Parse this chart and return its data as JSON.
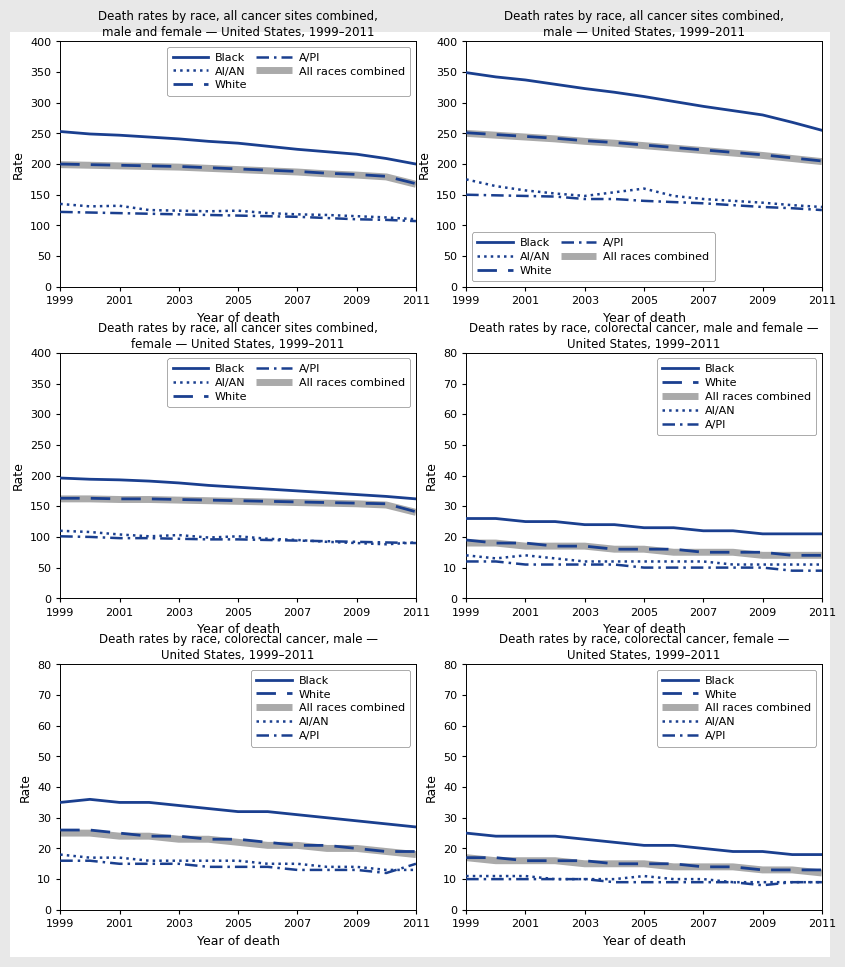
{
  "years": [
    1999,
    2000,
    2001,
    2002,
    2003,
    2004,
    2005,
    2006,
    2007,
    2008,
    2009,
    2010,
    2011
  ],
  "panels": [
    {
      "title": "Death rates by race, all cancer sites combined,\nmale and female — United States, 1999–2011",
      "ylim": [
        0,
        400
      ],
      "yticks": [
        0,
        50,
        100,
        150,
        200,
        250,
        300,
        350,
        400
      ],
      "legend_loc": "upper right",
      "legend_ncol": 2,
      "legend_order": [
        "Black",
        "AI/AN",
        "White",
        "A/PI",
        "All races"
      ],
      "series": {
        "Black": [
          253,
          249,
          247,
          244,
          241,
          237,
          234,
          229,
          224,
          220,
          216,
          209,
          200
        ],
        "White": [
          200,
          199,
          198,
          197,
          196,
          194,
          192,
          190,
          188,
          185,
          183,
          180,
          168
        ],
        "All races": [
          199,
          198,
          197,
          196,
          195,
          193,
          191,
          189,
          187,
          184,
          182,
          179,
          167
        ],
        "AI/AN": [
          135,
          131,
          132,
          125,
          124,
          123,
          124,
          120,
          118,
          117,
          115,
          113,
          110
        ],
        "A/PI": [
          122,
          121,
          120,
          119,
          118,
          117,
          116,
          115,
          114,
          112,
          110,
          109,
          107
        ]
      }
    },
    {
      "title": "Death rates by race, all cancer sites combined,\nmale — United States, 1999–2011",
      "ylim": [
        0,
        400
      ],
      "yticks": [
        0,
        50,
        100,
        150,
        200,
        250,
        300,
        350,
        400
      ],
      "legend_loc": "lower left",
      "legend_ncol": 2,
      "legend_order": [
        "Black",
        "AI/AN",
        "White",
        "A/PI",
        "All races"
      ],
      "series": {
        "Black": [
          349,
          342,
          337,
          330,
          323,
          317,
          310,
          302,
          294,
          287,
          280,
          268,
          255
        ],
        "White": [
          251,
          248,
          245,
          242,
          238,
          235,
          231,
          227,
          223,
          219,
          215,
          210,
          205
        ],
        "All races": [
          250,
          247,
          244,
          241,
          237,
          234,
          230,
          226,
          222,
          218,
          214,
          209,
          204
        ],
        "AI/AN": [
          175,
          164,
          157,
          152,
          148,
          154,
          160,
          148,
          143,
          140,
          137,
          133,
          130
        ],
        "A/PI": [
          150,
          149,
          148,
          147,
          143,
          143,
          140,
          138,
          136,
          133,
          130,
          128,
          125
        ]
      }
    },
    {
      "title": "Death rates by race, all cancer sites combined,\nfemale — United States, 1999–2011",
      "ylim": [
        0,
        400
      ],
      "yticks": [
        0,
        50,
        100,
        150,
        200,
        250,
        300,
        350,
        400
      ],
      "legend_loc": "upper right",
      "legend_ncol": 2,
      "legend_order": [
        "Black",
        "AI/AN",
        "White",
        "A/PI",
        "All races"
      ],
      "series": {
        "Black": [
          196,
          194,
          193,
          191,
          188,
          184,
          181,
          178,
          175,
          172,
          169,
          166,
          162
        ],
        "White": [
          163,
          163,
          162,
          162,
          161,
          160,
          159,
          158,
          157,
          156,
          155,
          154,
          141
        ],
        "All races": [
          162,
          162,
          161,
          161,
          160,
          159,
          158,
          157,
          156,
          155,
          154,
          152,
          140
        ],
        "AI/AN": [
          110,
          108,
          104,
          101,
          103,
          99,
          101,
          97,
          95,
          92,
          90,
          88,
          91
        ],
        "A/PI": [
          101,
          100,
          98,
          98,
          97,
          96,
          96,
          95,
          94,
          93,
          92,
          91,
          90
        ]
      }
    },
    {
      "title": "Death rates by race, colorectal cancer, male and female —\nUnited States, 1999–2011",
      "ylim": [
        0,
        80
      ],
      "yticks": [
        0,
        10,
        20,
        30,
        40,
        50,
        60,
        70,
        80
      ],
      "legend_loc": "upper right",
      "legend_ncol": 1,
      "legend_order": [
        "Black",
        "White",
        "All races",
        "AI/AN",
        "A/PI"
      ],
      "series": {
        "Black": [
          26,
          26,
          25,
          25,
          24,
          24,
          23,
          23,
          22,
          22,
          21,
          21,
          21
        ],
        "White": [
          19,
          18,
          18,
          17,
          17,
          16,
          16,
          16,
          15,
          15,
          15,
          14,
          14
        ],
        "All races": [
          18,
          18,
          17,
          17,
          17,
          16,
          16,
          15,
          15,
          15,
          14,
          14,
          14
        ],
        "AI/AN": [
          14,
          13,
          14,
          13,
          12,
          12,
          12,
          12,
          12,
          11,
          11,
          11,
          11
        ],
        "A/PI": [
          12,
          12,
          11,
          11,
          11,
          11,
          10,
          10,
          10,
          10,
          10,
          9,
          9
        ]
      }
    },
    {
      "title": "Death rates by race, colorectal cancer, male —\nUnited States, 1999–2011",
      "ylim": [
        0,
        80
      ],
      "yticks": [
        0,
        10,
        20,
        30,
        40,
        50,
        60,
        70,
        80
      ],
      "legend_loc": "upper right",
      "legend_ncol": 1,
      "legend_order": [
        "Black",
        "White",
        "All races",
        "AI/AN",
        "A/PI"
      ],
      "series": {
        "Black": [
          35,
          36,
          35,
          35,
          34,
          33,
          32,
          32,
          31,
          30,
          29,
          28,
          27
        ],
        "White": [
          26,
          26,
          25,
          24,
          24,
          23,
          23,
          22,
          21,
          21,
          20,
          19,
          19
        ],
        "All races": [
          25,
          25,
          24,
          24,
          23,
          23,
          22,
          21,
          21,
          20,
          20,
          19,
          18
        ],
        "AI/AN": [
          18,
          17,
          17,
          16,
          16,
          16,
          16,
          15,
          15,
          14,
          14,
          13,
          13
        ],
        "A/PI": [
          16,
          16,
          15,
          15,
          15,
          14,
          14,
          14,
          13,
          13,
          13,
          12,
          15
        ]
      }
    },
    {
      "title": "Death rates by race, colorectal cancer, female —\nUnited States, 1999–2011",
      "ylim": [
        0,
        80
      ],
      "yticks": [
        0,
        10,
        20,
        30,
        40,
        50,
        60,
        70,
        80
      ],
      "legend_loc": "upper right",
      "legend_ncol": 1,
      "legend_order": [
        "Black",
        "White",
        "All races",
        "AI/AN",
        "A/PI"
      ],
      "series": {
        "Black": [
          25,
          24,
          24,
          24,
          23,
          22,
          21,
          21,
          20,
          19,
          19,
          18,
          18
        ],
        "White": [
          17,
          17,
          16,
          16,
          16,
          15,
          15,
          15,
          14,
          14,
          13,
          13,
          13
        ],
        "All races": [
          17,
          16,
          16,
          16,
          15,
          15,
          15,
          14,
          14,
          14,
          13,
          13,
          12
        ],
        "AI/AN": [
          11,
          11,
          11,
          10,
          10,
          10,
          11,
          10,
          10,
          9,
          9,
          9,
          9
        ],
        "A/PI": [
          10,
          10,
          10,
          10,
          10,
          9,
          9,
          9,
          9,
          9,
          8,
          9,
          9
        ]
      }
    }
  ],
  "line_color_dark": "#1a3f8f",
  "line_color_light": "#6699cc",
  "all_races_color": "#aaaaaa",
  "xlabel": "Year of death",
  "ylabel": "Rate",
  "title_fontsize": 8.5,
  "tick_fontsize": 8,
  "label_fontsize": 9,
  "legend_fontsize": 8
}
